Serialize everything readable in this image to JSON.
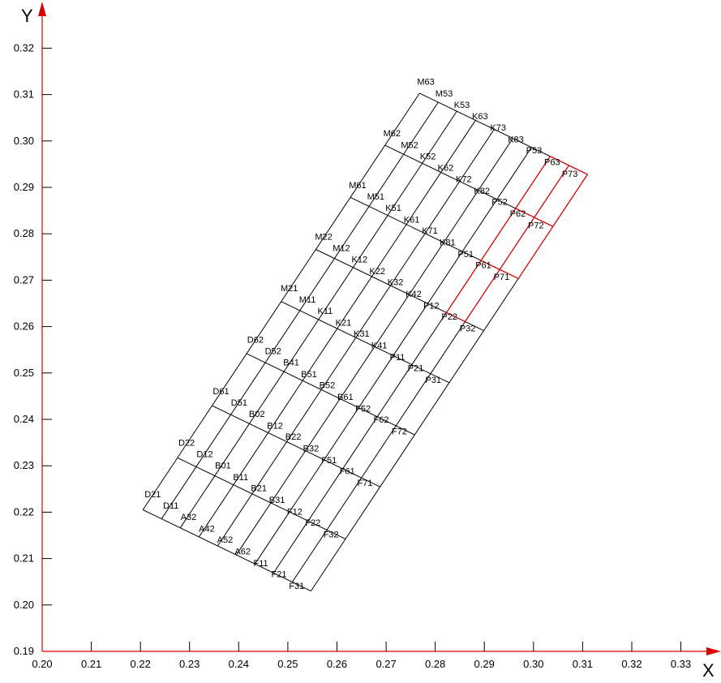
{
  "chart_data": {
    "type": "diagram",
    "x_axis": {
      "title": "X",
      "range": [
        0.2,
        0.34
      ],
      "ticks": [
        "0.20",
        "0.21",
        "0.22",
        "0.23",
        "0.24",
        "0.25",
        "0.26",
        "0.27",
        "0.28",
        "0.29",
        "0.30",
        "0.31",
        "0.32",
        "0.33"
      ]
    },
    "y_axis": {
      "title": "Y",
      "range": [
        0.19,
        0.33
      ],
      "ticks": [
        "0.19",
        "0.20",
        "0.21",
        "0.22",
        "0.23",
        "0.24",
        "0.25",
        "0.26",
        "0.27",
        "0.28",
        "0.29",
        "0.30",
        "0.31",
        "0.32"
      ]
    },
    "mesh": {
      "origin": [
        0.2205,
        0.2205
      ],
      "u_vector": [
        0.0342,
        -0.0175
      ],
      "v_vector": [
        0.0563,
        0.0898
      ],
      "u_divisions": 9,
      "v_divisions": 8,
      "line_color": "#000000",
      "highlight_color": "#dd0000",
      "highlight_cells": [
        [
          8,
          6
        ],
        [
          8,
          7
        ],
        [
          7,
          5
        ],
        [
          7,
          6
        ],
        [
          7,
          7
        ]
      ]
    },
    "cell_labels": [
      {
        "text": "D21",
        "x": 0.2225,
        "y": 0.2232
      },
      {
        "text": "D11",
        "x": 0.2262,
        "y": 0.2208
      },
      {
        "text": "A32",
        "x": 0.2298,
        "y": 0.2183
      },
      {
        "text": "A42",
        "x": 0.2335,
        "y": 0.2158
      },
      {
        "text": "A52",
        "x": 0.2372,
        "y": 0.2134
      },
      {
        "text": "A62",
        "x": 0.2408,
        "y": 0.2109
      },
      {
        "text": "F11",
        "x": 0.2445,
        "y": 0.2084
      },
      {
        "text": "F21",
        "x": 0.2482,
        "y": 0.206
      },
      {
        "text": "F31",
        "x": 0.2518,
        "y": 0.2035
      },
      {
        "text": "D22",
        "x": 0.2294,
        "y": 0.2343
      },
      {
        "text": "D12",
        "x": 0.2331,
        "y": 0.2319
      },
      {
        "text": "B01",
        "x": 0.2368,
        "y": 0.2294
      },
      {
        "text": "B11",
        "x": 0.2404,
        "y": 0.2269
      },
      {
        "text": "B21",
        "x": 0.2441,
        "y": 0.2245
      },
      {
        "text": "B31",
        "x": 0.2478,
        "y": 0.222
      },
      {
        "text": "F12",
        "x": 0.2514,
        "y": 0.2195
      },
      {
        "text": "F22",
        "x": 0.2551,
        "y": 0.2171
      },
      {
        "text": "F32",
        "x": 0.2588,
        "y": 0.2146
      },
      {
        "text": "D61",
        "x": 0.2364,
        "y": 0.2454
      },
      {
        "text": "D51",
        "x": 0.2401,
        "y": 0.243
      },
      {
        "text": "B02",
        "x": 0.2437,
        "y": 0.2405
      },
      {
        "text": "B12",
        "x": 0.2474,
        "y": 0.238
      },
      {
        "text": "B22",
        "x": 0.2511,
        "y": 0.2356
      },
      {
        "text": "B32",
        "x": 0.2547,
        "y": 0.2331
      },
      {
        "text": "F51",
        "x": 0.2584,
        "y": 0.2306
      },
      {
        "text": "F61",
        "x": 0.2621,
        "y": 0.2282
      },
      {
        "text": "F71",
        "x": 0.2657,
        "y": 0.2257
      },
      {
        "text": "D62",
        "x": 0.2434,
        "y": 0.2565
      },
      {
        "text": "D52",
        "x": 0.247,
        "y": 0.2541
      },
      {
        "text": "B41",
        "x": 0.2507,
        "y": 0.2516
      },
      {
        "text": "B51",
        "x": 0.2543,
        "y": 0.2491
      },
      {
        "text": "B52",
        "x": 0.258,
        "y": 0.2467
      },
      {
        "text": "B61",
        "x": 0.2617,
        "y": 0.2442
      },
      {
        "text": "F52",
        "x": 0.2653,
        "y": 0.2417
      },
      {
        "text": "F62",
        "x": 0.269,
        "y": 0.2393
      },
      {
        "text": "F72",
        "x": 0.2727,
        "y": 0.2368
      },
      {
        "text": "M21",
        "x": 0.2503,
        "y": 0.2676
      },
      {
        "text": "M11",
        "x": 0.254,
        "y": 0.2652
      },
      {
        "text": "K11",
        "x": 0.2576,
        "y": 0.2627
      },
      {
        "text": "K21",
        "x": 0.2613,
        "y": 0.2602
      },
      {
        "text": "K31",
        "x": 0.265,
        "y": 0.2578
      },
      {
        "text": "K41",
        "x": 0.2686,
        "y": 0.2553
      },
      {
        "text": "P11",
        "x": 0.2723,
        "y": 0.2528
      },
      {
        "text": "P21",
        "x": 0.276,
        "y": 0.2504
      },
      {
        "text": "P31",
        "x": 0.2796,
        "y": 0.2479
      },
      {
        "text": "M22",
        "x": 0.2573,
        "y": 0.2787
      },
      {
        "text": "M12",
        "x": 0.2609,
        "y": 0.2763
      },
      {
        "text": "K12",
        "x": 0.2646,
        "y": 0.2738
      },
      {
        "text": "K22",
        "x": 0.2682,
        "y": 0.2713
      },
      {
        "text": "K32",
        "x": 0.2719,
        "y": 0.2689
      },
      {
        "text": "K42",
        "x": 0.2756,
        "y": 0.2664
      },
      {
        "text": "P12",
        "x": 0.2792,
        "y": 0.2639
      },
      {
        "text": "P22",
        "x": 0.2829,
        "y": 0.2615
      },
      {
        "text": "P32",
        "x": 0.2866,
        "y": 0.259
      },
      {
        "text": "M61",
        "x": 0.2642,
        "y": 0.2898
      },
      {
        "text": "M51",
        "x": 0.2679,
        "y": 0.2874
      },
      {
        "text": "K51",
        "x": 0.2715,
        "y": 0.2849
      },
      {
        "text": "K61",
        "x": 0.2752,
        "y": 0.2824
      },
      {
        "text": "K71",
        "x": 0.2789,
        "y": 0.28
      },
      {
        "text": "K81",
        "x": 0.2825,
        "y": 0.2775
      },
      {
        "text": "P51",
        "x": 0.2862,
        "y": 0.275
      },
      {
        "text": "P61",
        "x": 0.2898,
        "y": 0.2726
      },
      {
        "text": "P71",
        "x": 0.2935,
        "y": 0.2701
      },
      {
        "text": "M62",
        "x": 0.2712,
        "y": 0.301
      },
      {
        "text": "M52",
        "x": 0.2748,
        "y": 0.2985
      },
      {
        "text": "K52",
        "x": 0.2785,
        "y": 0.296
      },
      {
        "text": "K62",
        "x": 0.2821,
        "y": 0.2936
      },
      {
        "text": "K72",
        "x": 0.2858,
        "y": 0.2911
      },
      {
        "text": "K82",
        "x": 0.2895,
        "y": 0.2886
      },
      {
        "text": "P52",
        "x": 0.2931,
        "y": 0.2862
      },
      {
        "text": "P62",
        "x": 0.2968,
        "y": 0.2837
      },
      {
        "text": "P72",
        "x": 0.3005,
        "y": 0.2812
      },
      {
        "text": "M63",
        "x": 0.2781,
        "y": 0.3121
      },
      {
        "text": "M53",
        "x": 0.2818,
        "y": 0.3096
      },
      {
        "text": "K53",
        "x": 0.2854,
        "y": 0.3071
      },
      {
        "text": "K63",
        "x": 0.2891,
        "y": 0.3047
      },
      {
        "text": "K73",
        "x": 0.2928,
        "y": 0.3022
      },
      {
        "text": "K83",
        "x": 0.2964,
        "y": 0.2997
      },
      {
        "text": "P53",
        "x": 0.3001,
        "y": 0.2973
      },
      {
        "text": "P63",
        "x": 0.3038,
        "y": 0.2948
      },
      {
        "text": "P73",
        "x": 0.3074,
        "y": 0.2923
      }
    ],
    "colors": {
      "axis": "#dd0000",
      "mesh": "#000000",
      "text": "#000000"
    }
  }
}
